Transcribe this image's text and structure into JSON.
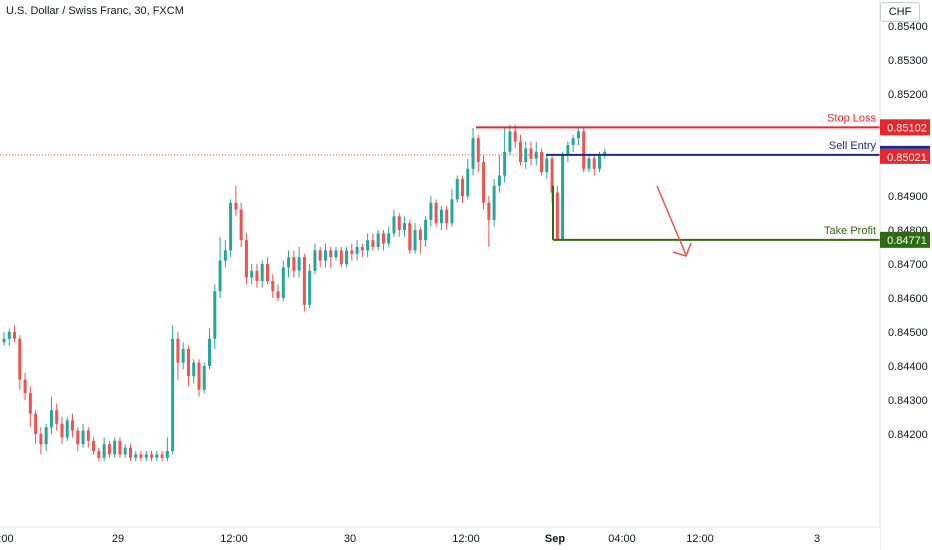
{
  "header": {
    "symbol_title": "U.S. Dollar / Swiss Franc, 30, FXCM",
    "currency_label": "CHF"
  },
  "colors": {
    "up": "#26a69a",
    "down": "#ef5350",
    "stop_loss": "#e8262b",
    "sell_entry": "#1c2a8e",
    "take_profit": "#2e6b10",
    "current_price_line": "#ef5350",
    "arrow": "#ef5350",
    "axis_text": "#131722",
    "border": "#e0e3eb"
  },
  "chart_data": {
    "type": "candlestick",
    "title": "U.S. Dollar / Swiss Franc, 30, FXCM",
    "ylim": [
      0.8413,
      0.8544
    ],
    "y_ticks": [
      "0.85400",
      "0.85300",
      "0.85200",
      "0.84900",
      "0.84800",
      "0.84700",
      "0.84600",
      "0.84500",
      "0.84400",
      "0.84300",
      "0.84200"
    ],
    "x_ticks": [
      ":00",
      "29",
      "12:00",
      "30",
      "12:00",
      "Sep",
      "04:00",
      "12:00",
      "3"
    ],
    "levels": [
      {
        "id": "stop_loss",
        "label": "Stop Loss",
        "price": "0.85102",
        "value": 0.85102
      },
      {
        "id": "sell_entry",
        "label": "Sell Entry",
        "price": "0.85021",
        "value": 0.85021
      },
      {
        "id": "take_profit",
        "label": "Take Profit",
        "price": "0.84771",
        "value": 0.84771
      }
    ],
    "current_price": 0.85021,
    "candles": [
      [
        0.8447,
        0.8448,
        0.8446,
        0.845
      ],
      [
        0.8448,
        0.845,
        0.8446,
        0.8451
      ],
      [
        0.845,
        0.8448,
        0.8447,
        0.8452
      ],
      [
        0.8448,
        0.8436,
        0.8433,
        0.8449
      ],
      [
        0.8436,
        0.8432,
        0.843,
        0.8438
      ],
      [
        0.8432,
        0.8426,
        0.8422,
        0.8434
      ],
      [
        0.8426,
        0.842,
        0.8417,
        0.8427
      ],
      [
        0.842,
        0.8417,
        0.8414,
        0.8422
      ],
      [
        0.8417,
        0.8422,
        0.8415,
        0.8423
      ],
      [
        0.8422,
        0.8427,
        0.842,
        0.8431
      ],
      [
        0.8427,
        0.8423,
        0.8421,
        0.8429
      ],
      [
        0.8423,
        0.8419,
        0.8417,
        0.8425
      ],
      [
        0.8419,
        0.8424,
        0.8418,
        0.8425
      ],
      [
        0.8424,
        0.8421,
        0.8419,
        0.8426
      ],
      [
        0.8421,
        0.8417,
        0.8415,
        0.8422
      ],
      [
        0.8417,
        0.8421,
        0.8416,
        0.8423
      ],
      [
        0.8421,
        0.8418,
        0.8416,
        0.8422
      ],
      [
        0.8418,
        0.8415,
        0.8414,
        0.8419
      ],
      [
        0.8415,
        0.8413,
        0.8412,
        0.8416
      ],
      [
        0.8413,
        0.8417,
        0.8412,
        0.8419
      ],
      [
        0.8417,
        0.8414,
        0.8413,
        0.8418
      ],
      [
        0.8414,
        0.8418,
        0.8413,
        0.8419
      ],
      [
        0.8418,
        0.8414,
        0.8413,
        0.8419
      ],
      [
        0.8414,
        0.8416,
        0.8413,
        0.8417
      ],
      [
        0.8416,
        0.8413,
        0.8412,
        0.8417
      ],
      [
        0.8413,
        0.8414,
        0.8412,
        0.8415
      ],
      [
        0.8414,
        0.8413,
        0.8412,
        0.8415
      ],
      [
        0.8413,
        0.8414,
        0.8412,
        0.8415
      ],
      [
        0.8414,
        0.8413,
        0.8412,
        0.8415
      ],
      [
        0.8413,
        0.8414,
        0.8412,
        0.8415
      ],
      [
        0.8414,
        0.8413,
        0.8412,
        0.8415
      ],
      [
        0.8413,
        0.8415,
        0.8412,
        0.8419
      ],
      [
        0.8415,
        0.8448,
        0.8414,
        0.8452
      ],
      [
        0.8448,
        0.8441,
        0.8436,
        0.845
      ],
      [
        0.8441,
        0.8445,
        0.8439,
        0.8447
      ],
      [
        0.8445,
        0.8437,
        0.8434,
        0.8446
      ],
      [
        0.8437,
        0.8441,
        0.8435,
        0.8442
      ],
      [
        0.8441,
        0.8433,
        0.8431,
        0.8442
      ],
      [
        0.8433,
        0.844,
        0.8432,
        0.8441
      ],
      [
        0.844,
        0.8448,
        0.8439,
        0.8451
      ],
      [
        0.8448,
        0.8462,
        0.8445,
        0.8464
      ],
      [
        0.8462,
        0.8471,
        0.846,
        0.8478
      ],
      [
        0.8471,
        0.8474,
        0.8469,
        0.8477
      ],
      [
        0.8474,
        0.8488,
        0.8472,
        0.8489
      ],
      [
        0.8488,
        0.8486,
        0.8484,
        0.8493
      ],
      [
        0.8486,
        0.8477,
        0.8475,
        0.8488
      ],
      [
        0.8477,
        0.8466,
        0.8464,
        0.8479
      ],
      [
        0.8466,
        0.8468,
        0.8464,
        0.847
      ],
      [
        0.8468,
        0.8465,
        0.8463,
        0.847
      ],
      [
        0.8465,
        0.847,
        0.8463,
        0.8471
      ],
      [
        0.847,
        0.8465,
        0.8464,
        0.8472
      ],
      [
        0.8465,
        0.8462,
        0.846,
        0.8467
      ],
      [
        0.8462,
        0.846,
        0.8459,
        0.8464
      ],
      [
        0.846,
        0.8469,
        0.8459,
        0.8471
      ],
      [
        0.8469,
        0.8472,
        0.8466,
        0.8474
      ],
      [
        0.8472,
        0.8468,
        0.8466,
        0.8474
      ],
      [
        0.8468,
        0.8472,
        0.8466,
        0.8475
      ],
      [
        0.8472,
        0.8458,
        0.8456,
        0.8473
      ],
      [
        0.8458,
        0.8468,
        0.8457,
        0.847
      ],
      [
        0.8468,
        0.8474,
        0.8467,
        0.8476
      ],
      [
        0.8474,
        0.8471,
        0.8469,
        0.8475
      ],
      [
        0.8471,
        0.8474,
        0.8469,
        0.8476
      ],
      [
        0.8474,
        0.8472,
        0.8469,
        0.8475
      ],
      [
        0.8472,
        0.8474,
        0.8471,
        0.8475
      ],
      [
        0.8474,
        0.847,
        0.8469,
        0.8475
      ],
      [
        0.847,
        0.8474,
        0.8469,
        0.8475
      ],
      [
        0.8474,
        0.8473,
        0.8471,
        0.8476
      ],
      [
        0.8473,
        0.8475,
        0.8471,
        0.8477
      ],
      [
        0.8475,
        0.8474,
        0.8472,
        0.8476
      ],
      [
        0.8474,
        0.8477,
        0.8472,
        0.8479
      ],
      [
        0.8477,
        0.8475,
        0.8474,
        0.8479
      ],
      [
        0.8475,
        0.8479,
        0.8474,
        0.848
      ],
      [
        0.8479,
        0.8476,
        0.8474,
        0.848
      ],
      [
        0.8476,
        0.8479,
        0.8475,
        0.8481
      ],
      [
        0.8479,
        0.8484,
        0.8478,
        0.8486
      ],
      [
        0.8484,
        0.848,
        0.8478,
        0.8485
      ],
      [
        0.848,
        0.8482,
        0.8478,
        0.8484
      ],
      [
        0.8482,
        0.8474,
        0.8473,
        0.8483
      ],
      [
        0.8474,
        0.848,
        0.8473,
        0.8482
      ],
      [
        0.848,
        0.8477,
        0.8473,
        0.8481
      ],
      [
        0.8477,
        0.8483,
        0.8475,
        0.8484
      ],
      [
        0.8483,
        0.8488,
        0.8481,
        0.849
      ],
      [
        0.8488,
        0.8482,
        0.8481,
        0.8489
      ],
      [
        0.8482,
        0.8486,
        0.848,
        0.8487
      ],
      [
        0.8486,
        0.8482,
        0.848,
        0.8487
      ],
      [
        0.8482,
        0.8489,
        0.8481,
        0.8492
      ],
      [
        0.8489,
        0.8495,
        0.8488,
        0.8496
      ],
      [
        0.8495,
        0.849,
        0.8488,
        0.8496
      ],
      [
        0.849,
        0.8498,
        0.8489,
        0.8501
      ],
      [
        0.8498,
        0.8507,
        0.8496,
        0.851
      ],
      [
        0.8507,
        0.85,
        0.8497,
        0.8508
      ],
      [
        0.85,
        0.8488,
        0.8486,
        0.8502
      ],
      [
        0.8488,
        0.8483,
        0.8475,
        0.849
      ],
      [
        0.8483,
        0.8493,
        0.8481,
        0.8495
      ],
      [
        0.8493,
        0.8496,
        0.8491,
        0.8502
      ],
      [
        0.8496,
        0.8503,
        0.8494,
        0.851
      ],
      [
        0.8503,
        0.8509,
        0.8502,
        0.8511
      ],
      [
        0.8509,
        0.8506,
        0.8504,
        0.8511
      ],
      [
        0.8506,
        0.85,
        0.8499,
        0.8508
      ],
      [
        0.85,
        0.8504,
        0.8498,
        0.8506
      ],
      [
        0.8504,
        0.8501,
        0.8499,
        0.8506
      ],
      [
        0.8501,
        0.8503,
        0.8499,
        0.8506
      ],
      [
        0.8503,
        0.8497,
        0.8496,
        0.8504
      ],
      [
        0.8497,
        0.8501,
        0.8495,
        0.8502
      ],
      [
        0.8501,
        0.8491,
        0.8488,
        0.8502
      ],
      [
        0.8491,
        0.8477,
        0.8477,
        0.8493
      ],
      [
        0.8477,
        0.8502,
        0.8477,
        0.8503
      ],
      [
        0.8502,
        0.8505,
        0.85,
        0.8506
      ],
      [
        0.8505,
        0.8507,
        0.8503,
        0.8508
      ],
      [
        0.8507,
        0.8509,
        0.8505,
        0.851
      ],
      [
        0.8509,
        0.8498,
        0.8497,
        0.851
      ],
      [
        0.8498,
        0.8501,
        0.8497,
        0.8502
      ],
      [
        0.8501,
        0.8498,
        0.8496,
        0.8502
      ],
      [
        0.8498,
        0.8502,
        0.8497,
        0.8503
      ],
      [
        0.8502,
        0.8503,
        0.8501,
        0.8504
      ]
    ]
  },
  "annotation": {
    "type": "arrow",
    "direction": "down",
    "color": "#ef5350"
  }
}
